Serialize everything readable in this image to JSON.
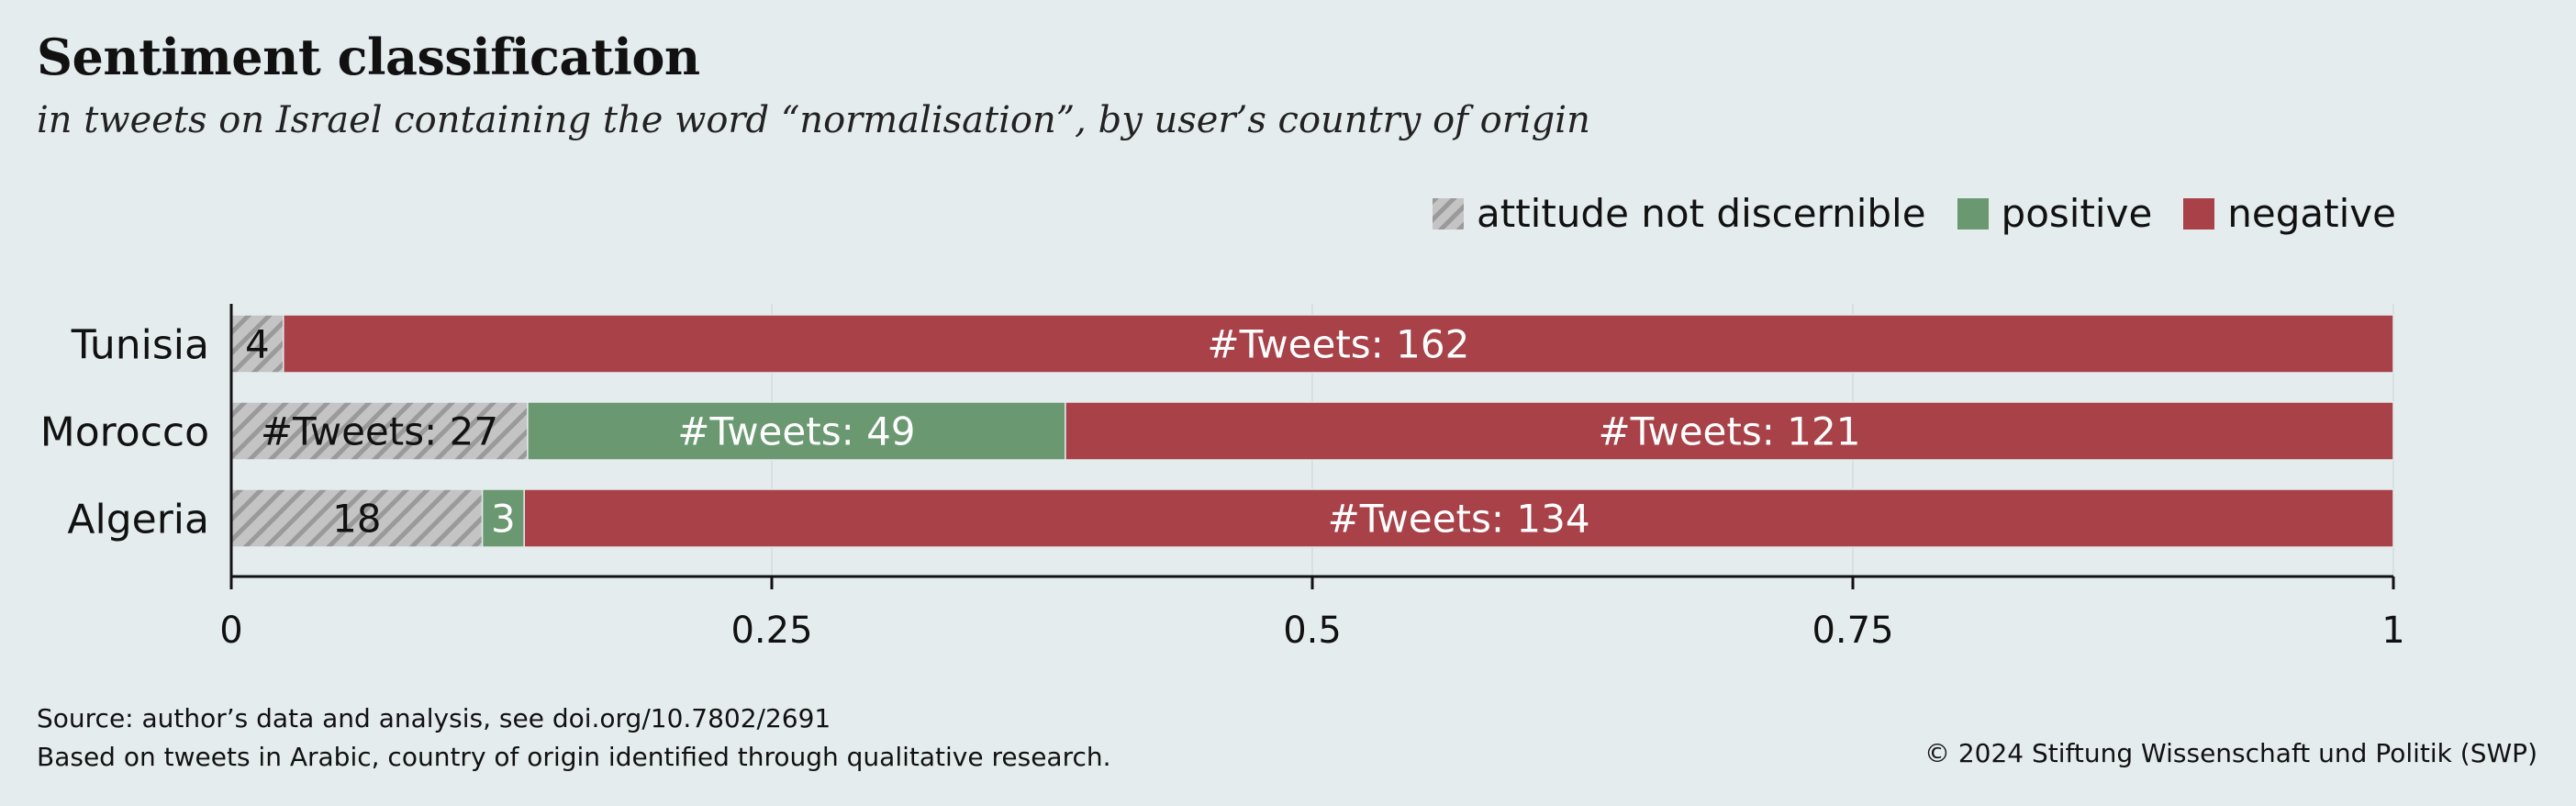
{
  "colors": {
    "background": "#e4ecee",
    "not_discernible": "#c4c4c4",
    "hatch": "#9a9a9a",
    "positive": "#6a9871",
    "negative": "#a84148",
    "grid": "#d6dfe1",
    "axis": "#111111"
  },
  "legend": {
    "items": [
      {
        "label": "attitude not discernible",
        "key": "not_discernible"
      },
      {
        "label": "positive",
        "key": "positive"
      },
      {
        "label": "negative",
        "key": "negative"
      }
    ]
  },
  "footer": {
    "source_line1": "Source: author’s data and analysis, see doi.org/10.7802/2691",
    "source_line2": "Based on tweets in Arabic, country of origin identified through qualitative research.",
    "copyright": "© 2024 Stiftung Wissenschaft und Politik (SWP)"
  },
  "chart_data": {
    "type": "bar",
    "orientation": "horizontal",
    "stacked": true,
    "normalized": true,
    "title": "Sentiment classification",
    "subtitle": "in tweets on Israel containing the word “normalisation”, by user’s country of origin",
    "categories": [
      "Tunisia",
      "Morocco",
      "Algeria"
    ],
    "series": [
      {
        "name": "attitude not discernible",
        "color_key": "not_discernible",
        "values": [
          4,
          27,
          18
        ],
        "labels": [
          "4",
          "#Tweets: 27",
          "18"
        ]
      },
      {
        "name": "positive",
        "color_key": "positive",
        "values": [
          0,
          49,
          3
        ],
        "labels": [
          "",
          "#Tweets: 49",
          "3"
        ]
      },
      {
        "name": "negative",
        "color_key": "negative",
        "values": [
          162,
          121,
          134
        ],
        "labels": [
          "#Tweets: 162",
          "#Tweets: 121",
          "#Tweets: 134"
        ]
      }
    ],
    "xlim": [
      0,
      1
    ],
    "xticks": [
      0,
      0.25,
      0.5,
      0.75,
      1
    ],
    "xtick_labels": [
      "0",
      "0.25",
      "0.5",
      "0.75",
      "1"
    ],
    "grid": true,
    "legend_position": "top-right"
  }
}
